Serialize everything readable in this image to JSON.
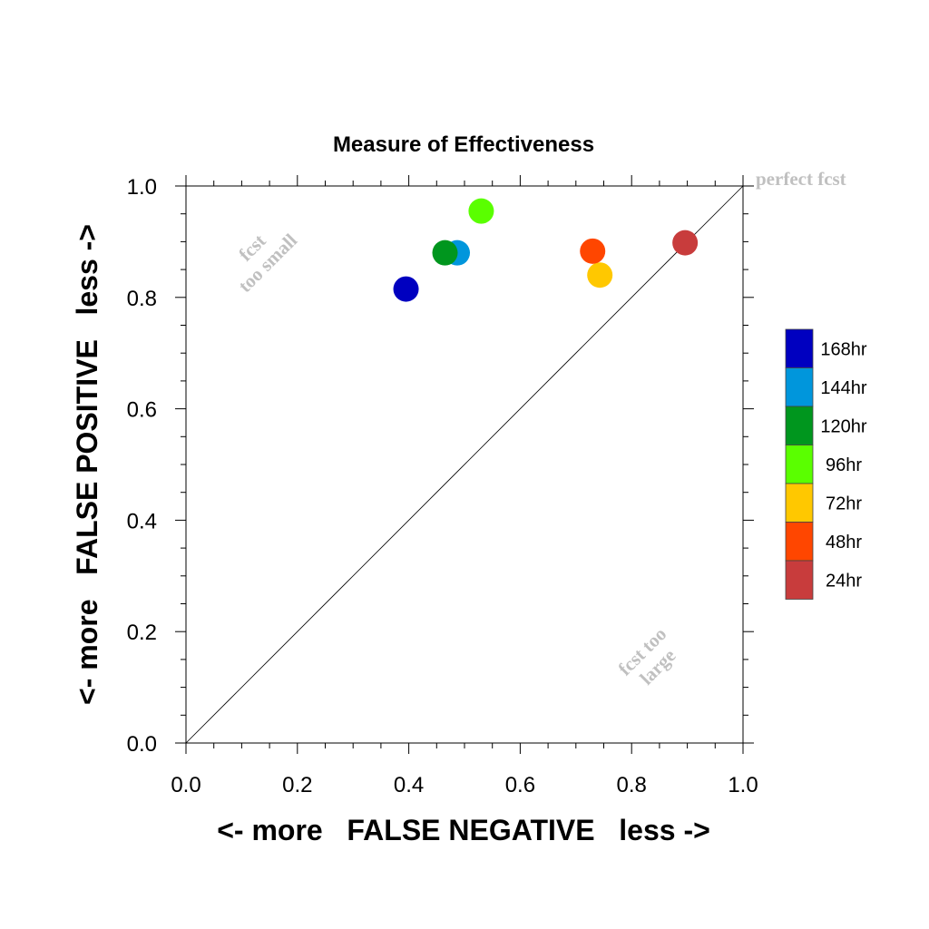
{
  "chart_data": {
    "type": "scatter",
    "title": "Measure of Effectiveness",
    "xlabel": "<- more   FALSE NEGATIVE   less ->",
    "ylabel": "<- more   FALSE POSITIVE   less ->",
    "xlim": [
      0.0,
      1.0
    ],
    "ylim": [
      0.0,
      1.0
    ],
    "xticks": [
      "0.0",
      "0.2",
      "0.4",
      "0.6",
      "0.8",
      "1.0"
    ],
    "yticks": [
      "0.0",
      "0.2",
      "0.4",
      "0.6",
      "0.8",
      "1.0"
    ],
    "grid": false,
    "diagonal_reference_line": true,
    "legend_placement": "right",
    "annotations": {
      "perfect": "perfect fcst",
      "small_line1": "fcst",
      "small_line2": "too small",
      "large_line1": "fcst too",
      "large_line2": "large"
    },
    "series": [
      {
        "name": "168hr",
        "color": "#0000c0",
        "x": 0.395,
        "y": 0.815
      },
      {
        "name": "144hr",
        "color": "#0096dc",
        "x": 0.487,
        "y": 0.88
      },
      {
        "name": "120hr",
        "color": "#00961e",
        "x": 0.465,
        "y": 0.88
      },
      {
        "name": "96hr",
        "color": "#5aff00",
        "x": 0.53,
        "y": 0.955
      },
      {
        "name": "72hr",
        "color": "#ffc800",
        "x": 0.743,
        "y": 0.84
      },
      {
        "name": "48hr",
        "color": "#ff4600",
        "x": 0.73,
        "y": 0.883
      },
      {
        "name": "24hr",
        "color": "#c83c3c",
        "x": 0.896,
        "y": 0.898
      }
    ]
  }
}
